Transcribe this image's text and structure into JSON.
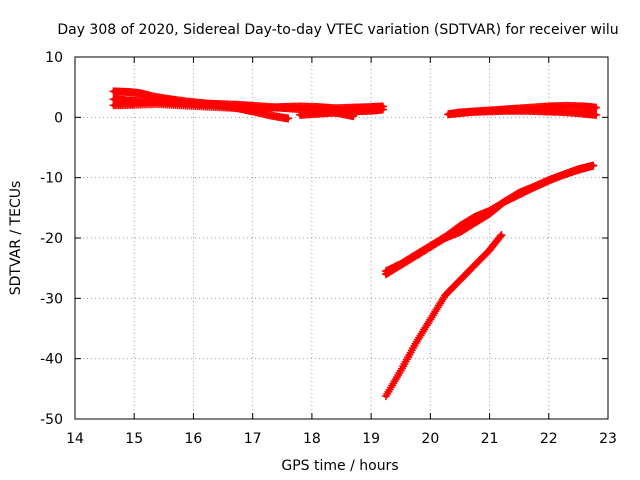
{
  "chart_data": {
    "type": "scatter",
    "title": "Day 308 of 2020, Sidereal Day-to-day VTEC variation (SDTVAR) for receiver wilu",
    "xlabel": "GPS time / hours",
    "ylabel": "SDTVAR / TECUs",
    "xlim": [
      14,
      23
    ],
    "ylim": [
      -50,
      10
    ],
    "xticks": [
      "14",
      "15",
      "16",
      "17",
      "18",
      "19",
      "20",
      "21",
      "22",
      "23"
    ],
    "yticks": [
      "10",
      "0",
      "-10",
      "-20",
      "-30",
      "-40",
      "-50"
    ],
    "grid": true,
    "marker": "+",
    "series_color": "#ff0000",
    "series": [
      {
        "x": [
          14.65,
          14.9,
          15.1,
          15.3,
          15.6,
          15.9,
          16.2,
          16.5,
          16.8,
          17.0,
          17.3,
          17.6
        ],
        "y": [
          4.3,
          4.2,
          4.0,
          3.5,
          3.0,
          2.6,
          2.3,
          1.9,
          1.4,
          1.0,
          0.3,
          -0.2
        ]
      },
      {
        "x": [
          14.65,
          14.9,
          15.2,
          15.5,
          15.8,
          16.1,
          16.4,
          16.7,
          17.0,
          17.3,
          17.6,
          17.9,
          18.2,
          18.5,
          18.7
        ],
        "y": [
          3.0,
          2.8,
          2.6,
          2.5,
          2.4,
          2.3,
          2.2,
          2.1,
          1.9,
          1.7,
          1.5,
          1.3,
          1.0,
          0.6,
          0.2
        ]
      },
      {
        "x": [
          14.65,
          15.0,
          15.4,
          15.8,
          16.2,
          16.6,
          17.0,
          17.3,
          17.5,
          17.8,
          18.1,
          18.4,
          18.7,
          19.0,
          19.2
        ],
        "y": [
          2.0,
          2.1,
          2.2,
          2.0,
          1.8,
          1.6,
          1.5,
          1.6,
          1.7,
          1.8,
          1.7,
          1.5,
          1.6,
          1.7,
          1.8
        ]
      },
      {
        "x": [
          17.8,
          18.1,
          18.4,
          18.7,
          19.0,
          19.2
        ],
        "y": [
          0.4,
          0.6,
          0.8,
          1.0,
          1.1,
          1.3
        ]
      },
      {
        "x": [
          20.3,
          20.5,
          20.8,
          21.1,
          21.4,
          21.7,
          22.0,
          22.3,
          22.6,
          22.8
        ],
        "y": [
          0.5,
          0.8,
          1.0,
          1.2,
          1.4,
          1.6,
          1.8,
          1.9,
          1.8,
          1.6
        ]
      },
      {
        "x": [
          20.4,
          20.7,
          21.0,
          21.3,
          21.6,
          21.9,
          22.2,
          22.5,
          22.8
        ],
        "y": [
          0.6,
          0.9,
          1.0,
          1.1,
          1.1,
          1.0,
          0.9,
          0.7,
          0.4
        ]
      },
      {
        "x": [
          19.25,
          19.5,
          19.75,
          20.0,
          20.25,
          20.5,
          20.75,
          21.0,
          21.25,
          21.5,
          21.75,
          22.0,
          22.25,
          22.5,
          22.75
        ],
        "y": [
          -25.5,
          -24.3,
          -22.8,
          -21.3,
          -19.8,
          -18.0,
          -16.5,
          -15.5,
          -14.0,
          -12.5,
          -11.5,
          -10.4,
          -9.5,
          -8.6,
          -8.0
        ]
      },
      {
        "x": [
          19.25,
          19.5,
          19.75,
          20.0,
          20.25,
          20.5,
          20.75,
          21.0,
          21.25,
          21.5,
          21.75,
          22.0,
          22.25,
          22.5,
          22.75
        ],
        "y": [
          -26.0,
          -24.5,
          -23.0,
          -21.5,
          -20.0,
          -19.0,
          -17.5,
          -16.0,
          -14.0,
          -12.8,
          -11.6,
          -10.5,
          -9.5,
          -8.7,
          -8.0
        ]
      },
      {
        "x": [
          19.25,
          19.5,
          19.75,
          20.0,
          20.25,
          20.5,
          20.75,
          21.0,
          21.2
        ],
        "y": [
          -46.2,
          -42.0,
          -37.5,
          -33.5,
          -29.5,
          -27.0,
          -24.5,
          -22.0,
          -19.5
        ]
      }
    ]
  }
}
